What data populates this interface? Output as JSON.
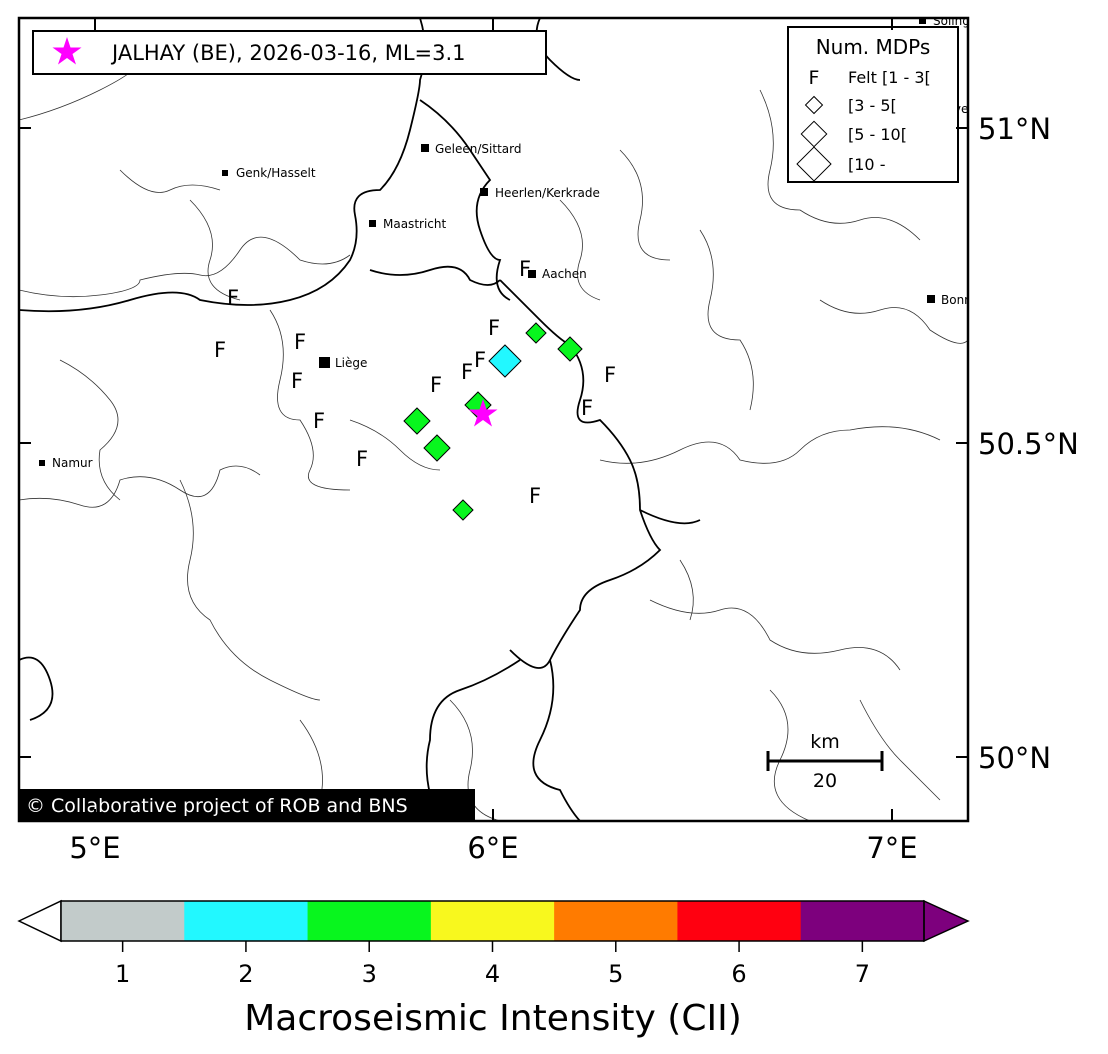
{
  "title_legend": {
    "event_label": "JALHAY (BE), 2026-03-16, ML=3.1",
    "event_marker_color": "#ff00ff"
  },
  "mdp_legend": {
    "title": "Num. MDPs",
    "felt_symbol": "F",
    "items": [
      {
        "label": "Felt [1 - 3["
      },
      {
        "label": "[3 - 5["
      },
      {
        "label": "[5 - 10["
      },
      {
        "label": "[10 -"
      }
    ]
  },
  "axes": {
    "lon_ticks": [
      "5°E",
      "6°E",
      "7°E"
    ],
    "lat_ticks": [
      "51°N",
      "50.5°N",
      "50°N"
    ]
  },
  "cities": [
    {
      "name": "Geleen/Sittard"
    },
    {
      "name": "Genk/Hasselt"
    },
    {
      "name": "Heerlen/Kerkrade"
    },
    {
      "name": "Maastricht"
    },
    {
      "name": "Aachen"
    },
    {
      "name": "Liège"
    },
    {
      "name": "Namur"
    },
    {
      "name": "Bonn"
    },
    {
      "name": "Sölingen"
    },
    {
      "name": "Leverkusen"
    }
  ],
  "scalebar": {
    "unit": "km",
    "value": "20"
  },
  "credit": "© Collaborative project of ROB and BNS",
  "colorbar": {
    "label": "Macroseismic Intensity (CII)",
    "ticks": [
      "1",
      "2",
      "3",
      "4",
      "5",
      "6",
      "7"
    ],
    "colors": [
      "#c2cbca",
      "#22f8ff",
      "#08f61e",
      "#f8f81e",
      "#ff7b00",
      "#ff0010",
      "#7d007d"
    ],
    "under_color": "#ffffff",
    "over_color": "#7d007d"
  },
  "markers": {
    "felt_count": 18,
    "diamonds": [
      {
        "intensity": 3,
        "size_class": "[3 - 5["
      },
      {
        "intensity": 3,
        "size_class": "[3 - 5["
      },
      {
        "intensity": 3,
        "size_class": "[5 - 10["
      },
      {
        "intensity": 3,
        "size_class": "[5 - 10["
      },
      {
        "intensity": 3,
        "size_class": "[5 - 10["
      },
      {
        "intensity": 3,
        "size_class": "[5 - 10["
      },
      {
        "intensity": 2,
        "size_class": "[10 -"
      }
    ]
  }
}
